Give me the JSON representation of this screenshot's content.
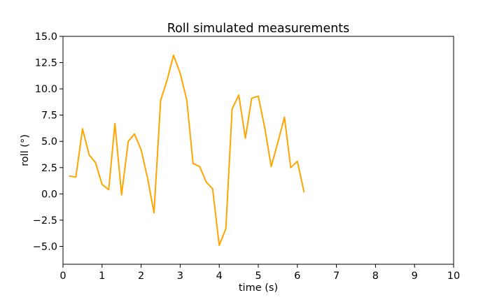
{
  "chart_data": {
    "type": "line",
    "title": "Roll simulated measurements",
    "xlabel": "time (s)",
    "ylabel": "roll (°)",
    "xlim": [
      0,
      10
    ],
    "ylim": [
      -6.7,
      15.0
    ],
    "xticks": [
      0,
      1,
      2,
      3,
      4,
      5,
      6,
      7,
      8,
      9,
      10
    ],
    "xtick_labels": [
      "0",
      "1",
      "2",
      "3",
      "4",
      "5",
      "6",
      "7",
      "8",
      "9",
      "10"
    ],
    "yticks": [
      -5.0,
      -2.5,
      0.0,
      2.5,
      5.0,
      7.5,
      10.0,
      12.5,
      15.0
    ],
    "ytick_labels": [
      "−5.0",
      "−2.5",
      "0.0",
      "2.5",
      "5.0",
      "7.5",
      "10.0",
      "12.5",
      "15.0"
    ],
    "grid": false,
    "series": [
      {
        "color": "#FFA500",
        "x": [
          0.17,
          0.33,
          0.5,
          0.67,
          0.83,
          1.0,
          1.17,
          1.33,
          1.5,
          1.67,
          1.83,
          2.0,
          2.17,
          2.33,
          2.5,
          2.67,
          2.83,
          3.0,
          3.17,
          3.33,
          3.5,
          3.67,
          3.83,
          4.0,
          4.17,
          4.33,
          4.5,
          4.67,
          4.83,
          5.0,
          5.17,
          5.33,
          5.5,
          5.67,
          5.83,
          6.0,
          6.17
        ],
        "values": [
          1.7,
          1.6,
          6.2,
          3.7,
          3.0,
          0.9,
          0.4,
          6.7,
          -0.1,
          5.0,
          5.7,
          4.2,
          1.4,
          -1.8,
          8.9,
          10.9,
          13.2,
          11.5,
          8.9,
          2.9,
          2.6,
          1.1,
          0.5,
          -4.9,
          -3.3,
          8.1,
          9.4,
          5.3,
          9.1,
          9.3,
          6.2,
          2.6,
          4.9,
          7.3,
          2.5,
          3.1,
          0.2
        ]
      }
    ]
  }
}
